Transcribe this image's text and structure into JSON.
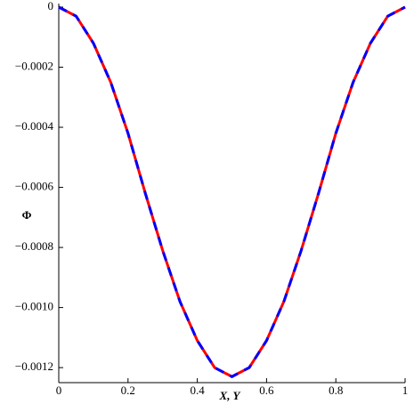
{
  "chart_data": {
    "type": "line",
    "x_label": "X, Y",
    "y_label": "Φ",
    "x": [
      0,
      0.05,
      0.1,
      0.15,
      0.2,
      0.25,
      0.3,
      0.35,
      0.4,
      0.45,
      0.5,
      0.55,
      0.6,
      0.65,
      0.7,
      0.75,
      0.8,
      0.85,
      0.9,
      0.95,
      1
    ],
    "series": [
      {
        "color": "#ff0000",
        "style": "solid",
        "values": [
          0,
          -3e-05,
          -0.00012,
          -0.00025,
          -0.00042,
          -0.00062,
          -0.00081,
          -0.00098,
          -0.00111,
          -0.0012,
          -0.00123,
          -0.0012,
          -0.00111,
          -0.00098,
          -0.00081,
          -0.00062,
          -0.00042,
          -0.00025,
          -0.00012,
          -3e-05,
          0
        ]
      },
      {
        "color": "#0000ff",
        "style": "dashed",
        "values": [
          0,
          -3e-05,
          -0.00012,
          -0.00025,
          -0.00042,
          -0.00062,
          -0.00081,
          -0.00098,
          -0.00111,
          -0.0012,
          -0.00123,
          -0.0012,
          -0.00111,
          -0.00098,
          -0.00081,
          -0.00062,
          -0.00042,
          -0.00025,
          -0.00012,
          -3e-05,
          0
        ]
      }
    ],
    "xlim": [
      0,
      1
    ],
    "xticks": [
      0,
      0.2,
      0.4,
      0.6,
      0.8,
      1
    ],
    "ylim": [
      -0.00125,
      0
    ],
    "yticks": [
      0,
      {
        "value": -0.0002,
        "label": "−0.0002"
      },
      {
        "value": -0.0004,
        "label": "−0.0004"
      },
      {
        "value": -0.0006,
        "label": "−0.0006"
      },
      {
        "value": -0.0008,
        "label": "−0.0008"
      },
      {
        "value": -0.001,
        "label": "−0.0010"
      },
      {
        "value": -0.0012,
        "label": "−0.0012"
      }
    ]
  }
}
